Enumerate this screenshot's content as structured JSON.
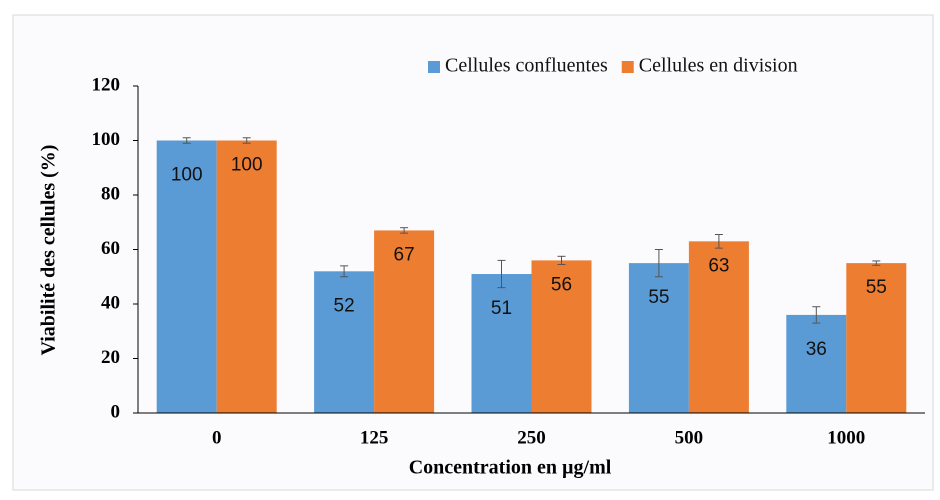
{
  "chart_data": {
    "type": "bar",
    "xlabel": "Concentration en µg/ml",
    "ylabel": "Viabilité des cellules (%)",
    "categories": [
      "0",
      "125",
      "250",
      "500",
      "1000"
    ],
    "series": [
      {
        "name": "Cellules confluentes",
        "color": "#5b9bd5",
        "values": [
          100,
          52,
          51,
          55,
          36
        ],
        "errors": [
          1,
          2,
          5,
          5,
          3
        ]
      },
      {
        "name": "Cellules en division",
        "color": "#ed7d31",
        "values": [
          100,
          67,
          56,
          63,
          55
        ],
        "errors": [
          1,
          1,
          1.5,
          2.5,
          0.8
        ]
      }
    ],
    "ylim": [
      0,
      120
    ],
    "yticks": [
      0,
      20,
      40,
      60,
      80,
      100,
      120
    ],
    "grid": false,
    "legend": "top-right"
  }
}
